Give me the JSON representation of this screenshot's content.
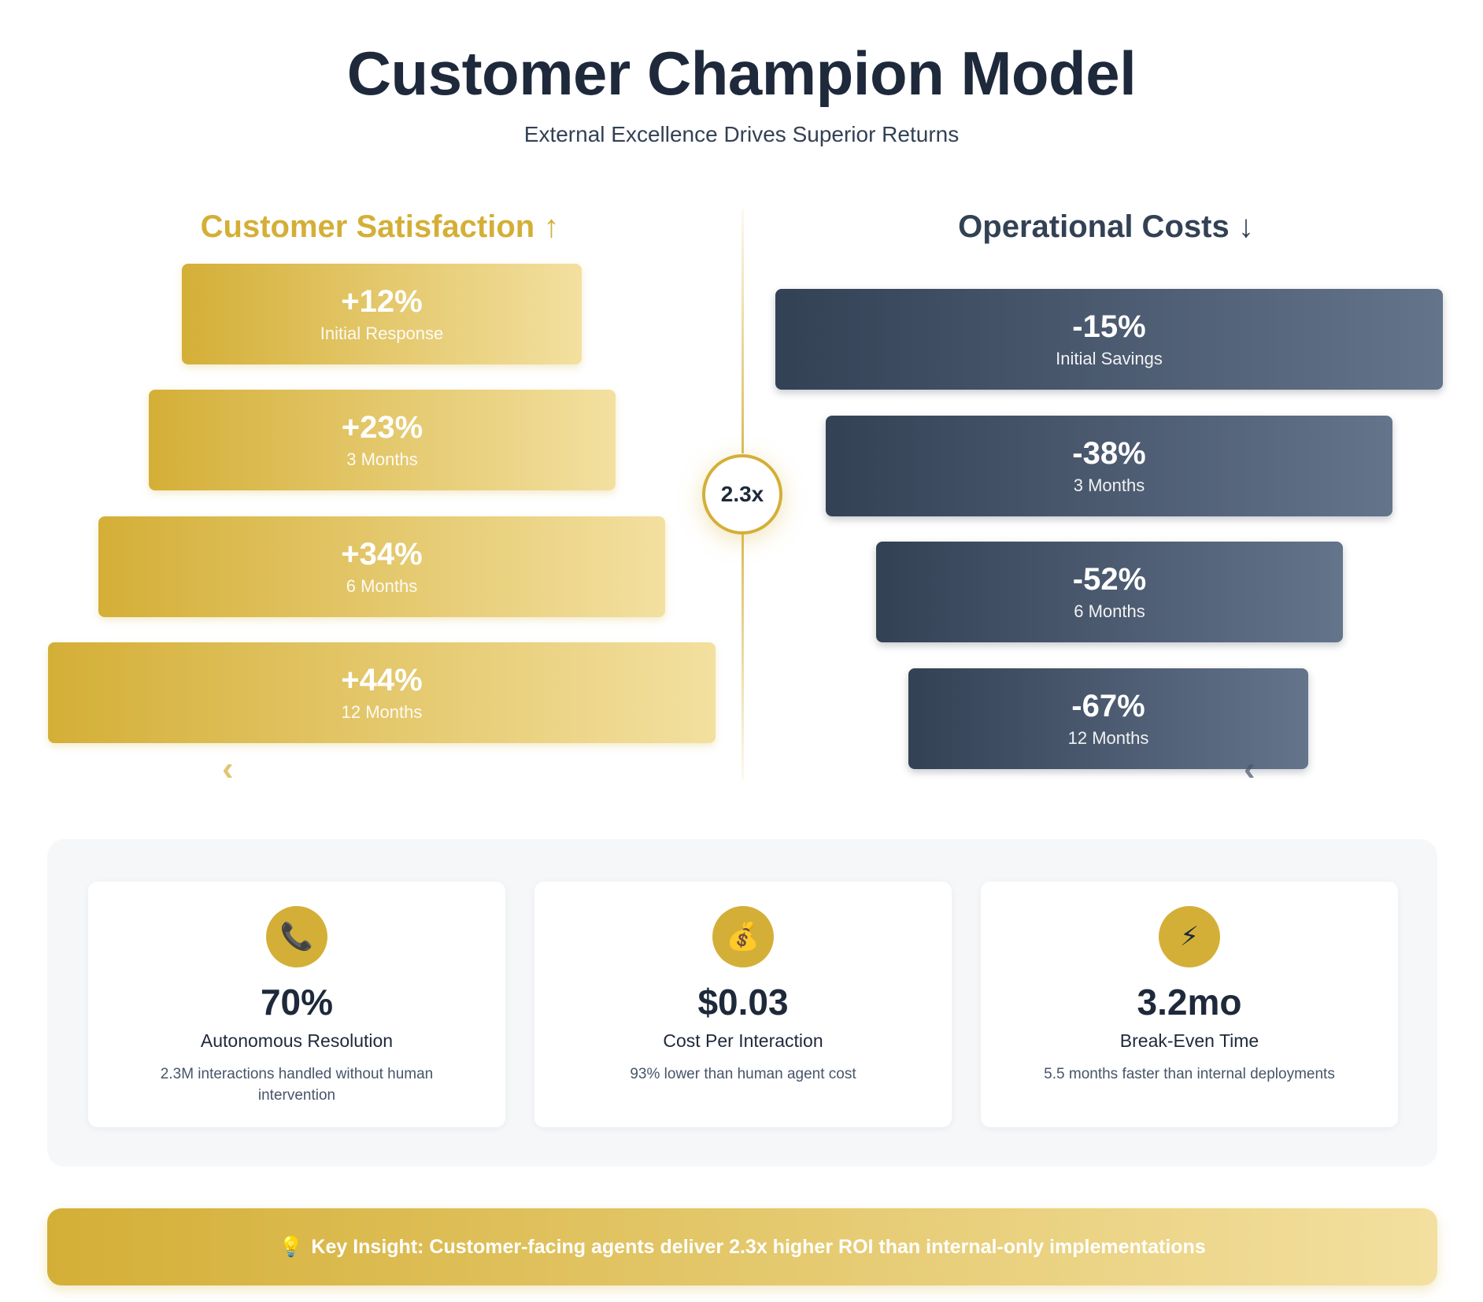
{
  "header": {
    "title": "Customer Champion Model",
    "subtitle": "External Excellence Drives Superior Returns"
  },
  "satisfaction": {
    "heading": "Customer Satisfaction",
    "arrow": "↑",
    "accent_color": "#d4af37",
    "stages": [
      {
        "value": "+12%",
        "label": "Initial Response"
      },
      {
        "value": "+23%",
        "label": "3 Months"
      },
      {
        "value": "+34%",
        "label": "6 Months"
      },
      {
        "value": "+44%",
        "label": "12 Months"
      }
    ]
  },
  "costs": {
    "heading": "Operational Costs",
    "arrow": "↓",
    "accent_color": "#334155",
    "stages": [
      {
        "value": "-15%",
        "label": "Initial Savings"
      },
      {
        "value": "-38%",
        "label": "3 Months"
      },
      {
        "value": "-52%",
        "label": "6 Months"
      },
      {
        "value": "-67%",
        "label": "12 Months"
      }
    ]
  },
  "ratio_badge": "2.3x",
  "stats": [
    {
      "icon": "phone-icon",
      "glyph": "📞",
      "value": "70%",
      "label": "Autonomous Resolution",
      "description": "2.3M interactions handled without human intervention"
    },
    {
      "icon": "money-bag-icon",
      "glyph": "💰",
      "value": "$0.03",
      "label": "Cost Per Interaction",
      "description": "93% lower than human agent cost"
    },
    {
      "icon": "lightning-icon",
      "glyph": "⚡",
      "value": "3.2mo",
      "label": "Break-Even Time",
      "description": "5.5 months faster than internal deployments"
    }
  ],
  "insight": {
    "icon": "lightbulb-icon",
    "glyph": "💡",
    "text": "Key Insight: Customer-facing agents deliver 2.3x higher ROI than internal-only implementations"
  },
  "colors": {
    "gold": "#d4af37",
    "gold_light": "#f3e0a0",
    "slate": "#334155",
    "slate_light": "#64748b"
  }
}
